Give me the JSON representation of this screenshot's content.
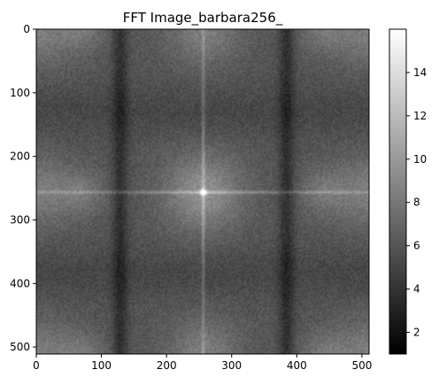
{
  "chart_data": {
    "type": "heatmap",
    "title": "FFT Image_barbara256_",
    "xlabel": "",
    "ylabel": "",
    "xlim": [
      0,
      511
    ],
    "ylim": [
      511,
      0
    ],
    "x_ticks": [
      0,
      100,
      200,
      300,
      400,
      500
    ],
    "y_ticks": [
      0,
      100,
      200,
      300,
      400,
      500
    ],
    "colormap": "gray",
    "color_range": [
      1,
      16
    ],
    "colorbar_ticks": [
      2,
      4,
      6,
      8,
      10,
      12,
      14
    ],
    "grid": false,
    "image_size": [
      512,
      512
    ],
    "value_peaks": [
      {
        "x": 256,
        "y": 256,
        "value": 16
      },
      {
        "x": 0,
        "y": 256,
        "value": 11
      },
      {
        "x": 511,
        "y": 256,
        "value": 11
      },
      {
        "x": 256,
        "y": 0,
        "value": 11
      },
      {
        "x": 256,
        "y": 511,
        "value": 11
      }
    ],
    "dark_bands_x": [
      128,
      384
    ],
    "bright_lines": {
      "horizontal_y": 256,
      "vertical_x": 256
    }
  }
}
